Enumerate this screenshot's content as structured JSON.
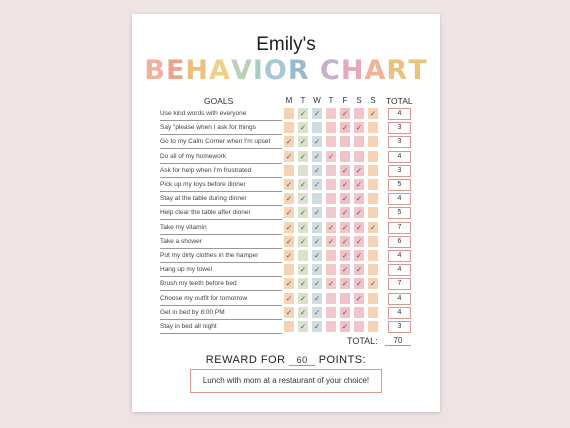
{
  "chart_name": "Emily's",
  "chart_title_letters": [
    "B",
    "E",
    "H",
    "A",
    "V",
    "I",
    "O",
    "R",
    " ",
    "C",
    "H",
    "A",
    "R",
    "T"
  ],
  "title_colors": [
    "#f2b29a",
    "#e9a58f",
    "#ecc07e",
    "#f0cf88",
    "#b9d1b4",
    "#a9cbbf",
    "#a8c7d3",
    "#9bbad0",
    "",
    "#c5b0d0",
    "#e7a8b9",
    "#f2b29a",
    "#ecc07e",
    "#e9c47f"
  ],
  "headers": {
    "goals": "GOALS",
    "days": [
      "M",
      "T",
      "W",
      "T",
      "F",
      "S",
      "S"
    ],
    "total": "TOTAL"
  },
  "day_colors": [
    "#f5d3b4",
    "#d9e3cc",
    "#cfdde2",
    "#f2c8c8",
    "#efc3c6",
    "#f1c4c9",
    "#f5d3b4"
  ],
  "check_mark": "✓",
  "goals": [
    {
      "label": "Use kind words with everyone",
      "checks": [
        0,
        1,
        1,
        0,
        1,
        0,
        1
      ],
      "total": "4"
    },
    {
      "label": "Say \"please when I ask for things",
      "checks": [
        0,
        1,
        0,
        0,
        1,
        1,
        0
      ],
      "total": "3"
    },
    {
      "label": "Go to my Calm Corner when I'm upset",
      "checks": [
        1,
        1,
        1,
        0,
        0,
        0,
        0
      ],
      "total": "3"
    },
    {
      "label": "Do all of my homework",
      "checks": [
        1,
        1,
        1,
        1,
        0,
        0,
        0
      ],
      "total": "4"
    },
    {
      "label": "Ask for help when I'm frustrated",
      "checks": [
        0,
        0,
        1,
        0,
        1,
        1,
        0
      ],
      "total": "3"
    },
    {
      "label": "Pick up my toys before dinner",
      "checks": [
        1,
        1,
        1,
        0,
        1,
        1,
        0
      ],
      "total": "5"
    },
    {
      "label": "Stay at the table during dinner",
      "checks": [
        1,
        1,
        0,
        0,
        1,
        1,
        0
      ],
      "total": "4"
    },
    {
      "label": "Help clear the table after dinner",
      "checks": [
        1,
        1,
        1,
        0,
        1,
        1,
        0
      ],
      "total": "5"
    },
    {
      "label": "Take my vitamin",
      "checks": [
        1,
        1,
        1,
        1,
        1,
        1,
        1
      ],
      "total": "7"
    },
    {
      "label": "Take a shower",
      "checks": [
        1,
        1,
        1,
        1,
        1,
        1,
        0
      ],
      "total": "6"
    },
    {
      "label": "Put my dirty clothes in the hamper",
      "checks": [
        1,
        0,
        1,
        0,
        1,
        1,
        0
      ],
      "total": "4"
    },
    {
      "label": "Hang up my towel",
      "checks": [
        0,
        1,
        1,
        0,
        1,
        1,
        0
      ],
      "total": "4"
    },
    {
      "label": "Brush my teeth before bed",
      "checks": [
        1,
        1,
        1,
        1,
        1,
        1,
        1
      ],
      "total": "7"
    },
    {
      "label": "Choose my outfit for tomorrow",
      "checks": [
        1,
        1,
        1,
        0,
        0,
        1,
        0
      ],
      "total": "4"
    },
    {
      "label": "Get in bed by 8:00 PM",
      "checks": [
        1,
        1,
        1,
        0,
        1,
        0,
        0
      ],
      "total": "4"
    },
    {
      "label": "Stay in bed all night",
      "checks": [
        0,
        1,
        1,
        0,
        1,
        0,
        0
      ],
      "total": "3"
    }
  ],
  "total_label": "TOTAL:",
  "grand_total": "70",
  "reward_prefix": "REWARD FOR",
  "reward_points": "60",
  "reward_suffix": "POINTS:",
  "reward_text": "Lunch with mom at a restaurant of your choice!"
}
